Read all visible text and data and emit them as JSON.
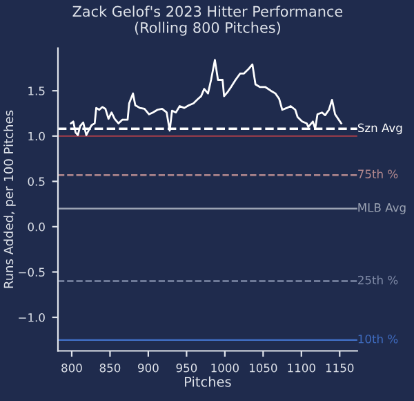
{
  "chart_data": {
    "type": "line",
    "title": "Zack Gelof's 2023 Hitter Performance\n(Rolling 800 Pitches)",
    "xlabel": "Pitches",
    "ylabel": "Runs Added, per 100 Pitches",
    "x": [
      799,
      802,
      805,
      808,
      811,
      815,
      819,
      822,
      826,
      830,
      832,
      836,
      840,
      844,
      848,
      852,
      856,
      861,
      866,
      873,
      875,
      880,
      883,
      889,
      895,
      901,
      906,
      912,
      918,
      924,
      928,
      931,
      936,
      941,
      947,
      953,
      959,
      965,
      969,
      973,
      978,
      982,
      987,
      991,
      997,
      999,
      1004,
      1008,
      1014,
      1020,
      1025,
      1031,
      1036,
      1040,
      1046,
      1053,
      1060,
      1066,
      1071,
      1075,
      1081,
      1086,
      1092,
      1095,
      1101,
      1107,
      1109,
      1115,
      1118,
      1121,
      1127,
      1131,
      1136,
      1140,
      1144,
      1148,
      1152
    ],
    "series": [
      {
        "color": "#ffffff",
        "values": [
          1.14,
          1.16,
          1.04,
          1.01,
          1.11,
          1.15,
          1.01,
          1.06,
          1.12,
          1.14,
          1.31,
          1.29,
          1.32,
          1.3,
          1.19,
          1.26,
          1.19,
          1.14,
          1.18,
          1.18,
          1.36,
          1.47,
          1.34,
          1.31,
          1.3,
          1.24,
          1.26,
          1.29,
          1.3,
          1.26,
          1.06,
          1.28,
          1.26,
          1.33,
          1.31,
          1.34,
          1.36,
          1.41,
          1.44,
          1.52,
          1.47,
          1.62,
          1.84,
          1.62,
          1.62,
          1.44,
          1.49,
          1.54,
          1.62,
          1.69,
          1.69,
          1.74,
          1.79,
          1.57,
          1.54,
          1.54,
          1.5,
          1.47,
          1.41,
          1.29,
          1.31,
          1.33,
          1.29,
          1.21,
          1.16,
          1.14,
          1.1,
          1.16,
          1.08,
          1.24,
          1.26,
          1.23,
          1.29,
          1.4,
          1.24,
          1.19,
          1.14
        ]
      }
    ],
    "xlim": [
      782,
      1173
    ],
    "ylim": [
      -1.37,
      1.97
    ],
    "xticks": [
      800,
      850,
      900,
      950,
      1000,
      1050,
      1100,
      1150
    ],
    "yticks": [
      {
        "value": -1.0,
        "label": "−1.0"
      },
      {
        "value": -0.5,
        "label": "−0.5"
      },
      {
        "value": 0.0,
        "label": "0.0"
      },
      {
        "value": 0.5,
        "label": "0.5"
      },
      {
        "value": 1.0,
        "label": "1.0"
      },
      {
        "value": 1.5,
        "label": "1.5"
      }
    ],
    "ref_lines": [
      {
        "axis": "y",
        "value": 1.08,
        "label": "Szn Avg",
        "color": "#ffffff",
        "line_style": "dashed"
      },
      {
        "axis": "y",
        "value": 1.0,
        "label": null,
        "color": "#8a3a4a",
        "line_style": "solid"
      },
      {
        "axis": "y",
        "value": 0.57,
        "label": "75th %",
        "color": "#b58a8f",
        "line_style": "dashed"
      },
      {
        "axis": "y",
        "value": 0.2,
        "label": "MLB Avg",
        "color": "#9ba3b3",
        "line_style": "solid"
      },
      {
        "axis": "y",
        "value": -0.6,
        "label": "25th %",
        "color": "#7f8aa6",
        "line_style": "dashed"
      },
      {
        "axis": "y",
        "value": -1.25,
        "label": "10th %",
        "color": "#3f6cc0",
        "line_style": "solid"
      }
    ],
    "grid": false,
    "legend": false
  }
}
